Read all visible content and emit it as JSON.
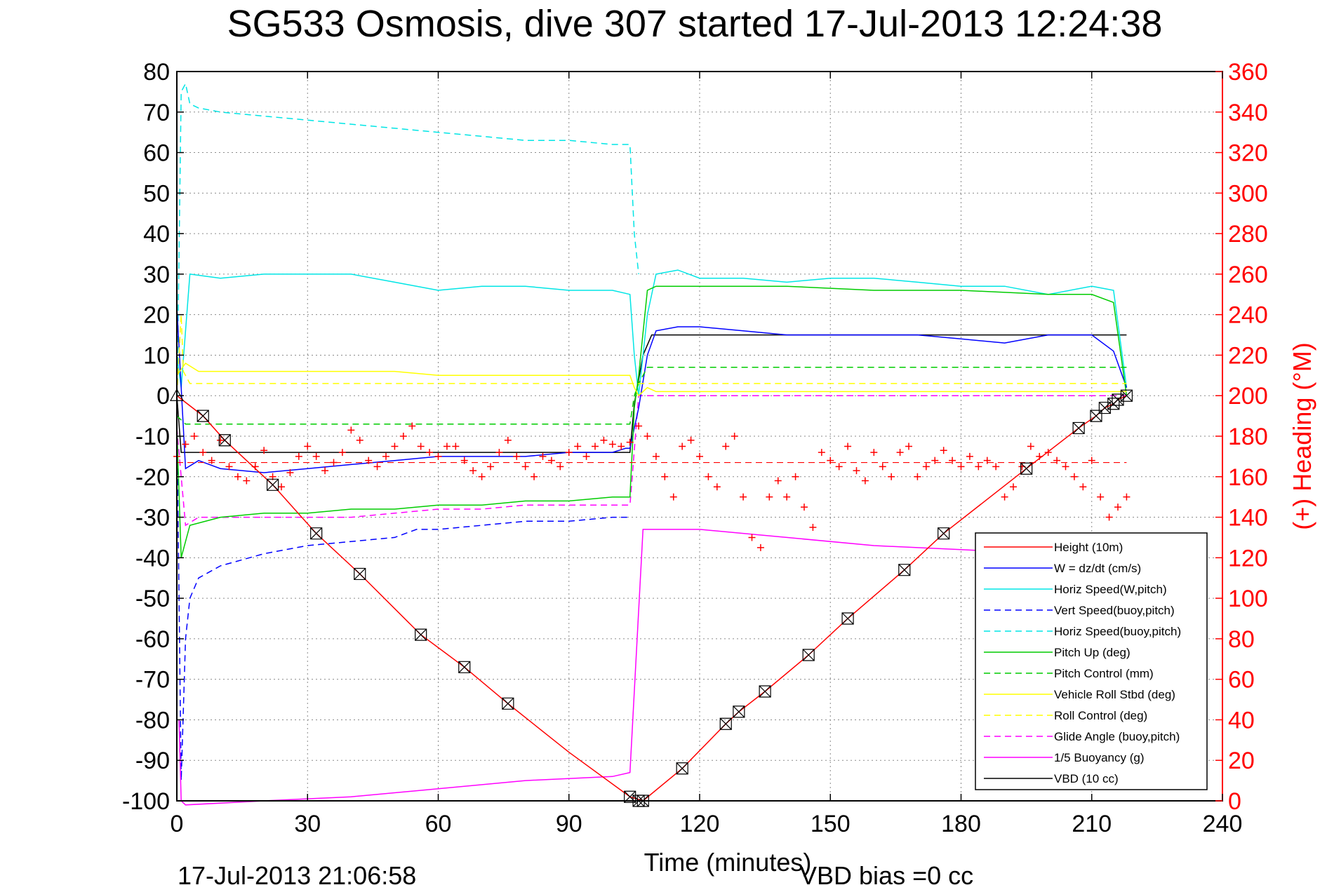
{
  "chart_data": {
    "type": "line",
    "title": "SG533 Osmosis, dive 307 started 17-Jul-2013 12:24:38",
    "xlabel": "Time (minutes)",
    "ylabel": "",
    "y2label": "(+) Heading (°M)",
    "xlim": [
      0,
      240
    ],
    "ylim": [
      -100,
      80
    ],
    "y2lim": [
      0,
      360
    ],
    "xticks": [
      "0",
      "30",
      "60",
      "90",
      "120",
      "150",
      "180",
      "210",
      "240"
    ],
    "yticks": [
      "80",
      "70",
      "60",
      "50",
      "40",
      "30",
      "20",
      "10",
      "0",
      "-10",
      "-20",
      "-30",
      "-40",
      "-50",
      "-60",
      "-70",
      "-80",
      "-90",
      "-100"
    ],
    "y2ticks": [
      "360",
      "340",
      "320",
      "300",
      "280",
      "260",
      "240",
      "220",
      "200",
      "180",
      "160",
      "140",
      "120",
      "100",
      "80",
      "60",
      "40",
      "20",
      "0"
    ],
    "grid": true,
    "legend_position": "bottom-right",
    "footer_left": "17-Jul-2013 21:06:58",
    "footer_right": "VBD bias =0 cc",
    "series": [
      {
        "name": "Height (10m)",
        "color": "#ff0000",
        "style": "solid",
        "x": [
          0,
          6,
          11,
          22,
          32,
          42,
          56,
          66,
          76,
          90,
          104,
          107,
          116,
          126,
          129,
          135,
          145,
          154,
          167,
          176,
          195,
          207,
          211,
          213,
          215,
          216,
          218
        ],
        "y": [
          0,
          -5,
          -11,
          -22,
          -34,
          -44,
          -59,
          -67,
          -76,
          -88,
          -99,
          -100,
          -92,
          -81,
          -78,
          -73,
          -64,
          -55,
          -43,
          -34,
          -18,
          -8,
          -5,
          -3,
          -2,
          -1,
          0
        ]
      },
      {
        "name": "W = dz/dt (cm/s)",
        "color": "#0000ff",
        "style": "solid",
        "x": [
          0,
          2,
          5,
          10,
          20,
          30,
          40,
          50,
          60,
          70,
          80,
          90,
          100,
          103,
          104,
          106,
          108,
          110,
          115,
          120,
          130,
          140,
          150,
          160,
          170,
          180,
          190,
          200,
          210,
          215,
          218
        ],
        "y": [
          22,
          -18,
          -16,
          -18,
          -19,
          -18,
          -17,
          -16,
          -15,
          -15,
          -15,
          -14,
          -14,
          -13,
          -13,
          -3,
          10,
          16,
          17,
          17,
          16,
          15,
          15,
          15,
          15,
          14,
          13,
          15,
          15,
          11,
          2
        ]
      },
      {
        "name": "Horiz Speed(W,pitch)",
        "color": "#00e5e5",
        "style": "solid",
        "x": [
          0,
          1,
          3,
          10,
          20,
          30,
          40,
          50,
          60,
          70,
          80,
          90,
          100,
          104,
          105,
          106,
          108,
          110,
          115,
          120,
          130,
          140,
          150,
          160,
          170,
          180,
          190,
          200,
          210,
          215,
          218
        ],
        "y": [
          10,
          2,
          30,
          29,
          30,
          30,
          30,
          28,
          26,
          27,
          27,
          26,
          26,
          25,
          10,
          0,
          20,
          30,
          31,
          29,
          29,
          28,
          29,
          29,
          28,
          27,
          27,
          25,
          27,
          26,
          2
        ]
      },
      {
        "name": "Vert Speed(buoy,pitch)",
        "color": "#0000ff",
        "style": "dashed",
        "x": [
          0,
          1,
          2,
          3,
          5,
          10,
          20,
          30,
          40,
          50,
          55,
          60,
          70,
          80,
          90,
          100,
          104
        ],
        "y": [
          -5,
          -95,
          -60,
          -50,
          -45,
          -42,
          -39,
          -37,
          -36,
          -35,
          -33,
          -33,
          -32,
          -31,
          -31,
          -30,
          -30
        ]
      },
      {
        "name": "Horiz Speed(buoy,pitch)",
        "color": "#00e5e5",
        "style": "dashed",
        "x": [
          0,
          1,
          2,
          3,
          5,
          10,
          20,
          30,
          40,
          50,
          60,
          70,
          80,
          90,
          100,
          104,
          105,
          106
        ],
        "y": [
          -5,
          75,
          77,
          72,
          71,
          70,
          69,
          68,
          67,
          66,
          65,
          64,
          63,
          63,
          62,
          62,
          40,
          30
        ]
      },
      {
        "name": "Pitch Up (deg)",
        "color": "#00cc00",
        "style": "solid",
        "x": [
          0,
          1,
          3,
          10,
          20,
          30,
          40,
          50,
          60,
          70,
          80,
          90,
          100,
          104,
          105,
          106,
          108,
          110,
          120,
          140,
          160,
          180,
          200,
          210,
          215,
          218
        ],
        "y": [
          -8,
          -40,
          -32,
          -30,
          -29,
          -29,
          -28,
          -28,
          -27,
          -27,
          -26,
          -26,
          -25,
          -25,
          -3,
          5,
          26,
          27,
          27,
          27,
          26,
          26,
          25,
          25,
          23,
          0
        ]
      },
      {
        "name": "Pitch Control (mm)",
        "color": "#00cc00",
        "style": "dashed",
        "x": [
          0,
          2,
          5,
          104,
          105,
          106,
          108,
          218
        ],
        "y": [
          -5,
          -7,
          -7,
          -7,
          0,
          3,
          7,
          7
        ]
      },
      {
        "name": "Vehicle Roll Stbd (deg)",
        "color": "#ffff00",
        "style": "solid",
        "x": [
          0,
          2,
          5,
          10,
          20,
          30,
          40,
          50,
          60,
          70,
          80,
          90,
          100,
          104,
          105,
          106,
          108,
          110,
          120,
          130,
          140,
          150,
          160,
          170,
          180,
          190,
          200,
          210,
          215,
          218
        ],
        "y": [
          5,
          8,
          6,
          6,
          6,
          6,
          6,
          6,
          5,
          5,
          5,
          5,
          5,
          5,
          2,
          0,
          2,
          1,
          1,
          1,
          1,
          1,
          1,
          1,
          1,
          1,
          1,
          1,
          1,
          1
        ]
      },
      {
        "name": "Roll Control (deg)",
        "color": "#ffff00",
        "style": "dashed",
        "x": [
          0,
          1,
          1.5,
          3,
          218
        ],
        "y": [
          0,
          20,
          6,
          3,
          3
        ]
      },
      {
        "name": "Glide Angle (buoy,pitch)",
        "color": "#ff00ff",
        "style": "dashed",
        "x": [
          0,
          2,
          5,
          10,
          20,
          30,
          40,
          50,
          60,
          70,
          80,
          90,
          100,
          104,
          106,
          108,
          218
        ],
        "y": [
          -8,
          -32,
          -30,
          -30,
          -30,
          -30,
          -30,
          -29,
          -28,
          -28,
          -27,
          -27,
          -27,
          -27,
          0,
          0,
          0
        ]
      },
      {
        "name": "1/5 Buoyancy (g)",
        "color": "#ff00ff",
        "style": "solid",
        "x": [
          0.5,
          1,
          2,
          20,
          40,
          60,
          80,
          100,
          104,
          107,
          110,
          120,
          140,
          160,
          180,
          200,
          218
        ],
        "y": [
          -80,
          -100,
          -101,
          -100,
          -99,
          -97,
          -95,
          -94,
          -93,
          -33,
          -33,
          -33,
          -35,
          -37,
          -38,
          -39,
          -39
        ]
      },
      {
        "name": "VBD (10 cc)",
        "color": "#000000",
        "style": "solid",
        "x": [
          0,
          1,
          104,
          105,
          107,
          109,
          110,
          218
        ],
        "y": [
          0,
          -14,
          -14,
          -2,
          10,
          15,
          15,
          15
        ]
      }
    ],
    "heading_series": {
      "name": "(+) Heading",
      "color": "#ff0000",
      "marker": "+",
      "x": [
        0,
        2,
        4,
        6,
        8,
        10,
        12,
        14,
        16,
        18,
        20,
        22,
        24,
        26,
        28,
        30,
        32,
        34,
        36,
        38,
        40,
        42,
        44,
        46,
        48,
        50,
        52,
        54,
        56,
        58,
        60,
        62,
        64,
        66,
        68,
        70,
        72,
        74,
        76,
        78,
        80,
        82,
        84,
        86,
        88,
        90,
        92,
        94,
        96,
        98,
        100,
        102,
        104,
        106,
        108,
        110,
        112,
        114,
        116,
        118,
        120,
        122,
        124,
        126,
        128,
        130,
        132,
        134,
        136,
        138,
        140,
        142,
        144,
        146,
        148,
        150,
        152,
        154,
        156,
        158,
        160,
        162,
        164,
        166,
        168,
        170,
        172,
        174,
        176,
        178,
        180,
        182,
        184,
        186,
        188,
        190,
        192,
        194,
        196,
        198,
        200,
        202,
        204,
        206,
        208,
        210,
        212,
        214,
        216,
        218
      ],
      "y": [
        170,
        176,
        180,
        172,
        168,
        178,
        165,
        160,
        158,
        165,
        173,
        160,
        155,
        162,
        170,
        175,
        170,
        163,
        167,
        172,
        183,
        178,
        168,
        165,
        170,
        175,
        180,
        185,
        175,
        172,
        170,
        175,
        175,
        168,
        163,
        160,
        165,
        172,
        178,
        170,
        165,
        160,
        170,
        168,
        165,
        172,
        175,
        170,
        175,
        178,
        176,
        175,
        177,
        185,
        180,
        170,
        160,
        150,
        175,
        178,
        170,
        160,
        155,
        175,
        180,
        150,
        130,
        125,
        150,
        158,
        150,
        160,
        145,
        135,
        172,
        168,
        165,
        175,
        163,
        158,
        172,
        165,
        160,
        172,
        175,
        160,
        165,
        168,
        173,
        168,
        165,
        170,
        165,
        168,
        165,
        150,
        155,
        165,
        175,
        170,
        172,
        168,
        165,
        160,
        155,
        168,
        150,
        140,
        145,
        150
      ]
    },
    "heading_mean": 167,
    "ballast_markers": {
      "shape": "boxed-x",
      "color": "#000000",
      "x": [
        6,
        11,
        22,
        32,
        42,
        56,
        66,
        76,
        104,
        106,
        107,
        116,
        126,
        129,
        135,
        145,
        154,
        167,
        176,
        195,
        207,
        211,
        213,
        215,
        216,
        218
      ],
      "y": [
        -5,
        -11,
        -22,
        -34,
        -44,
        -59,
        -67,
        -76,
        -99,
        -100,
        -100,
        -92,
        -81,
        -78,
        -73,
        -64,
        -55,
        -43,
        -34,
        -18,
        -8,
        -5,
        -3,
        -2,
        -1,
        0
      ]
    },
    "start_marker": {
      "shape": "triangle",
      "x": 0,
      "y": 0
    }
  }
}
